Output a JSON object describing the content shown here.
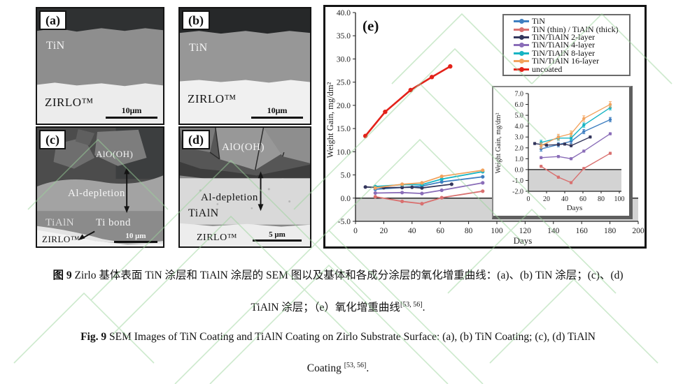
{
  "panels": {
    "a": {
      "label": "(a)",
      "coating": "TiN",
      "substrate": "ZIRLO™",
      "scale": "10μm"
    },
    "b": {
      "label": "(b)",
      "coating": "TiN",
      "substrate": "ZIRLO™",
      "scale": "10μm"
    },
    "c": {
      "label": "(c)",
      "oxide": "AlO(OH)",
      "depletion": "Al-depletion",
      "coating": "TiAlN",
      "bond": "Ti bond",
      "substrate": "ZIRLO™",
      "scale": "10 μm"
    },
    "d": {
      "label": "(d)",
      "oxide": "AlO(OH)",
      "depletion": "Al-depletion",
      "coating": "TiAlN",
      "substrate": "ZIRLO™",
      "scale": "5 μm"
    }
  },
  "chart_data": {
    "type": "line",
    "panel_label": "(e)",
    "xlabel": "Days",
    "ylabel": "Weight Gain, mg/dm²",
    "main_axis": {
      "xlim": [
        0,
        200
      ],
      "ylim": [
        -5,
        40
      ],
      "xtick_step": 20,
      "ytick_step": 5,
      "shaded_below": 0
    },
    "inset_axis": {
      "xlim": [
        0,
        100
      ],
      "ylim": [
        -2,
        7
      ],
      "xtick_step": 20,
      "ytick_step": 1,
      "xlabel": "Days",
      "ylabel": "Weight Gain, mg/dm²",
      "shaded_below": 0
    },
    "series": [
      {
        "name": "TiN",
        "color": "#3f7fc1",
        "days": [
          14,
          33,
          47,
          61,
          90
        ],
        "values": [
          1.9,
          2.3,
          2.6,
          3.5,
          4.6
        ],
        "err": 0.2,
        "in_inset": true
      },
      {
        "name": "TiN (thin) / TiAlN (thick)",
        "color": "#d9706f",
        "days": [
          14,
          33,
          47,
          61,
          90
        ],
        "values": [
          0.3,
          -0.7,
          -1.2,
          0.1,
          1.5
        ],
        "err": 0.1,
        "in_inset": true
      },
      {
        "name": "TiN/TiAlN 2-layer",
        "color": "#33365c",
        "days": [
          7,
          20,
          33,
          40,
          47,
          68
        ],
        "values": [
          2.4,
          2.25,
          2.3,
          2.35,
          2.2,
          3.0
        ],
        "err": 0.1,
        "in_inset": true
      },
      {
        "name": "TiN/TiAlN 4-layer",
        "color": "#8a6db8",
        "days": [
          14,
          33,
          47,
          61,
          90
        ],
        "values": [
          1.1,
          1.2,
          1.0,
          1.7,
          3.3
        ],
        "err": 0.1,
        "in_inset": true
      },
      {
        "name": "TiN/TiAlN 8-layer",
        "color": "#17b4c3",
        "days": [
          14,
          33,
          47,
          61,
          90
        ],
        "values": [
          2.5,
          2.9,
          2.9,
          4.1,
          5.7
        ],
        "err": 0.2,
        "in_inset": true
      },
      {
        "name": "TiN/TiAlN 16-layer",
        "color": "#f2a35e",
        "days": [
          14,
          33,
          47,
          61,
          90
        ],
        "values": [
          2.2,
          3.0,
          3.3,
          4.7,
          6.0
        ],
        "err": 0.25,
        "in_inset": true
      },
      {
        "name": "uncoated",
        "color": "#e32219",
        "days": [
          7,
          21,
          39,
          54,
          67
        ],
        "values": [
          13.4,
          18.6,
          23.3,
          26.1,
          28.4
        ],
        "err": 0,
        "in_inset": false
      }
    ]
  },
  "caption": {
    "zh1_prefix": "图 9",
    "zh1_text": " Zirlo 基体表面 TiN 涂层和 TiAlN 涂层的 SEM 图以及基体和各成分涂层的氧化增重曲线：(a)、(b) TiN 涂层；(c)、(d)",
    "zh2_text": "TiAlN 涂层；（e）氧化增重曲线",
    "zh2_ref": "[53, 56]",
    "zh2_tail": ".",
    "en1_prefix": "Fig. 9",
    "en1_text": " SEM Images of TiN Coating and TiAlN Coating on Zirlo Substrate Surface: (a), (b) TiN Coating; (c), (d) TiAlN",
    "en2_text": "Coating ",
    "en2_ref": "[53, 56]",
    "en2_tail": "."
  }
}
